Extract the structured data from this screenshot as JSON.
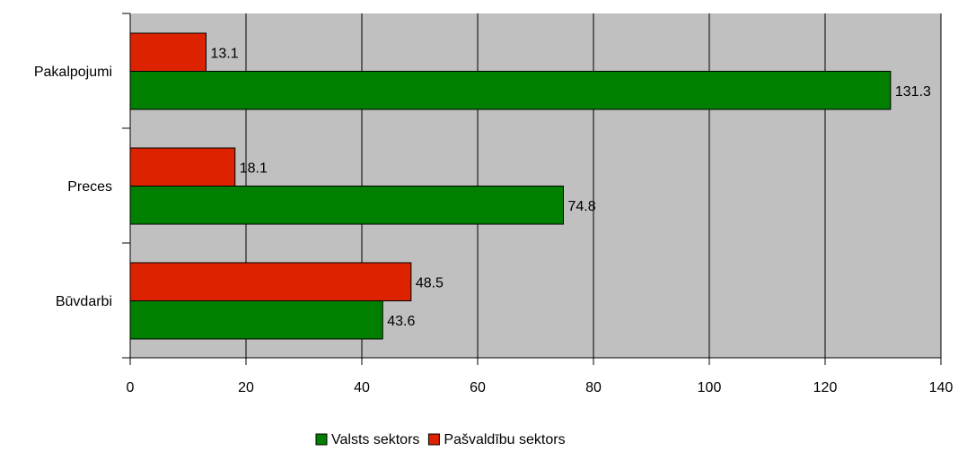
{
  "chart_data": {
    "type": "bar",
    "orientation": "horizontal",
    "categories": [
      "Pakalpojumi",
      "Preces",
      "Būvdarbi"
    ],
    "series": [
      {
        "name": "Pašvaldību sektors",
        "color": "#dd2200",
        "values": [
          13.1,
          18.1,
          48.5
        ],
        "labels": [
          "13.1",
          "18.1",
          "48.5"
        ]
      },
      {
        "name": "Valsts sektors",
        "color": "#007f00",
        "values": [
          131.3,
          74.8,
          43.6
        ],
        "labels": [
          "131.3",
          "74.8",
          "43.6"
        ]
      }
    ],
    "xlim": [
      0,
      140
    ],
    "xticks": [
      0,
      20,
      40,
      60,
      80,
      100,
      120,
      140
    ],
    "xtick_labels": [
      "0",
      "20",
      "40",
      "60",
      "80",
      "100",
      "120",
      "140"
    ],
    "grid": true,
    "plot_background": "#c0c0c0",
    "legend_position": "bottom",
    "legend": [
      {
        "name": "Valsts sektors",
        "color": "#007f00"
      },
      {
        "name": "Pašvaldību sektors",
        "color": "#dd2200"
      }
    ]
  }
}
